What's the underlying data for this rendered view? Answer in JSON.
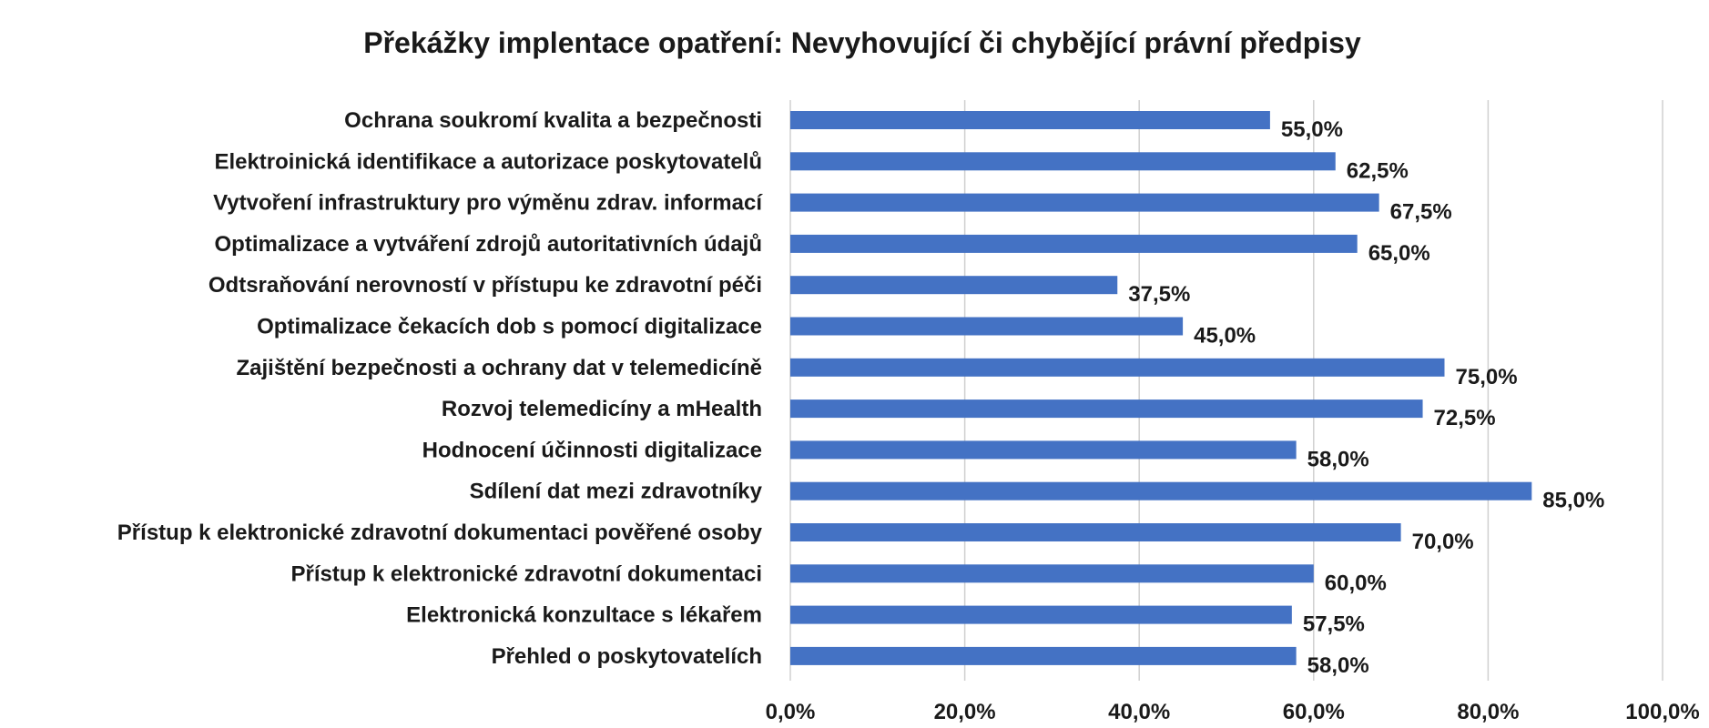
{
  "chart_data": {
    "type": "bar",
    "orientation": "horizontal",
    "title": "Překážky implentace opatření: Nevyhovující či chybějící právní předpisy",
    "categories": [
      "Ochrana soukromí kvalita a bezpečnosti",
      "Elektroinická identifikace a autorizace poskytovatelů",
      "Vytvoření infrastruktury pro výměnu zdrav. informací",
      "Optimalizace a vytváření zdrojů autoritativních údajů",
      "Odtsraňování nerovností v přístupu ke zdravotní péči",
      "Optimalizace čekacích dob s pomocí digitalizace",
      "Zajištění bezpečnosti a ochrany dat v telemedicíně",
      "Rozvoj telemedicíny a mHealth",
      "Hodnocení účinnosti digitalizace",
      "Sdílení dat mezi zdravotníky",
      "Přístup k elektronické zdravotní dokumentaci pověřené osoby",
      "Přístup k elektronické zdravotní dokumentaci",
      "Elektronická konzultace s lékařem",
      "Přehled o poskytovatelích"
    ],
    "values": [
      55.0,
      62.5,
      67.5,
      65.0,
      37.5,
      45.0,
      75.0,
      72.5,
      58.0,
      85.0,
      70.0,
      60.0,
      57.5,
      58.0
    ],
    "data_labels": [
      "55,0%",
      "62,5%",
      "67,5%",
      "65,0%",
      "37,5%",
      "45,0%",
      "75,0%",
      "72,5%",
      "58,0%",
      "85,0%",
      "70,0%",
      "60,0%",
      "57,5%",
      "58,0%"
    ],
    "xlim": [
      0,
      100
    ],
    "x_ticks": [
      0,
      20,
      40,
      60,
      80,
      100
    ],
    "x_tick_labels": [
      "0,0%",
      "20,0%",
      "40,0%",
      "60,0%",
      "80,0%",
      "100,0%"
    ],
    "xlabel": "",
    "ylabel": "",
    "grid": "vertical",
    "legend": "none",
    "bar_color": "#4472c4"
  }
}
